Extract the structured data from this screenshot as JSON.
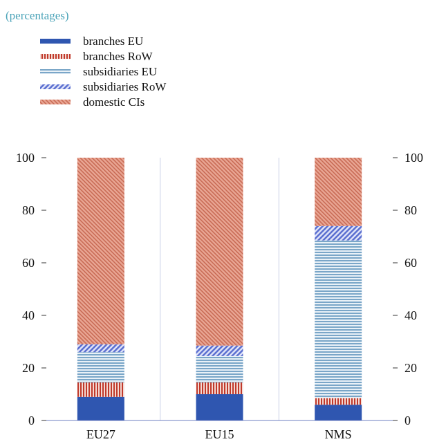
{
  "units_label": "(percentages)",
  "chart_data": {
    "type": "bar",
    "stacked": true,
    "categories": [
      "EU27",
      "EU15",
      "NMS"
    ],
    "series": [
      {
        "name": "branches EU",
        "values": [
          9,
          10,
          6
        ],
        "color": "#2f56b0",
        "pattern": "solid"
      },
      {
        "name": "branches RoW",
        "values": [
          5.5,
          4.5,
          2.5
        ],
        "color": "#c0392b",
        "pattern": "vertical-stripes"
      },
      {
        "name": "subsidiaries EU",
        "values": [
          11.5,
          10,
          60
        ],
        "color": "#7aa6c8",
        "pattern": "horizontal-stripes"
      },
      {
        "name": "subsidiaries RoW",
        "values": [
          3,
          4,
          5.5
        ],
        "color": "#5b6fd0",
        "pattern": "diagonal-stripes"
      },
      {
        "name": "domestic CIs",
        "values": [
          71,
          71.5,
          26
        ],
        "color": "#d9806b",
        "pattern": "diagonal-hatch"
      }
    ],
    "y_ticks": [
      0,
      20,
      40,
      60,
      80,
      100
    ],
    "ylim": [
      0,
      100
    ],
    "grid": "vertical",
    "legend_position": "top-left"
  }
}
